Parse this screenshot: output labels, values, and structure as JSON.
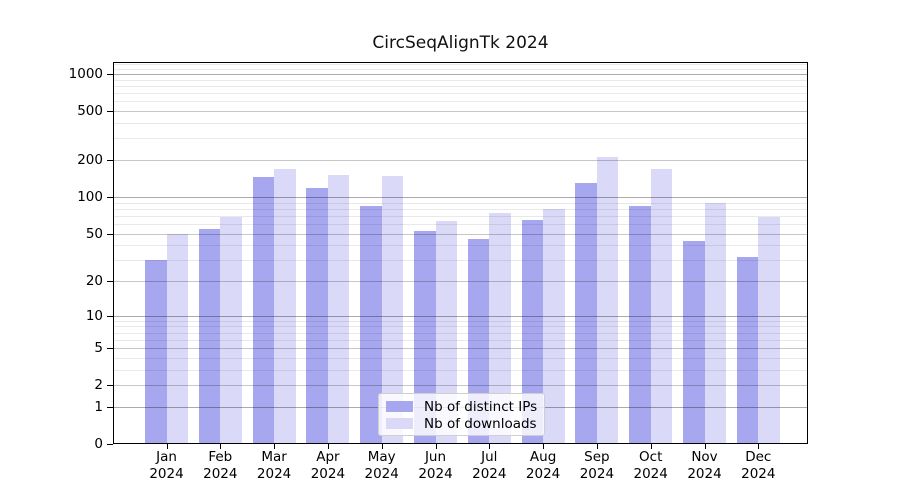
{
  "chart_data": {
    "type": "bar",
    "title": "CircSeqAlignTk 2024",
    "categories": [
      "Jan 2024",
      "Feb 2024",
      "Mar 2024",
      "Apr 2024",
      "May 2024",
      "Jun 2024",
      "Jul 2024",
      "Aug 2024",
      "Sep 2024",
      "Oct 2024",
      "Nov 2024",
      "Dec 2024"
    ],
    "series": [
      {
        "name": "Nb of distinct IPs",
        "color": "#a7a7f0",
        "values": [
          30,
          54,
          145,
          119,
          84,
          52,
          45,
          65,
          129,
          84,
          43,
          32
        ]
      },
      {
        "name": "Nb of downloads",
        "color": "#dadaf8",
        "values": [
          50,
          68,
          168,
          150,
          148,
          64,
          74,
          80,
          210,
          168,
          89,
          69
        ]
      }
    ],
    "xlabel": "",
    "ylabel": "",
    "yscale": "log10(1+v)",
    "yticks": [
      0,
      1,
      2,
      5,
      10,
      20,
      50,
      100,
      200,
      500,
      1000
    ],
    "ylim": [
      0,
      1320
    ],
    "grid": true,
    "legend_position": "inside-bottom-center"
  },
  "colors": {
    "grid_minor": "#e9e9e9",
    "grid_major": "#c6c6c6",
    "grid_decade": "#aaaaaa",
    "spine": "#000000",
    "background": "#ffffff"
  }
}
